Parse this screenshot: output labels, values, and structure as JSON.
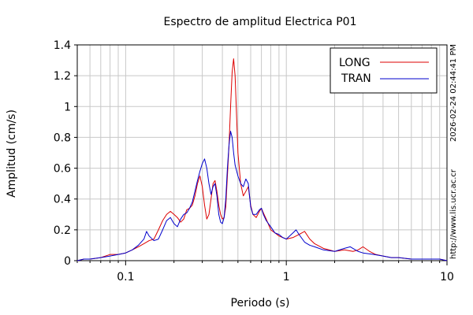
{
  "chart_data": {
    "type": "line",
    "title": "Espectro de amplitud Electrica P01",
    "xlabel": "Periodo (s)",
    "ylabel": "Amplitud (cm/s)",
    "xscale": "log",
    "xlim": [
      0.05,
      10
    ],
    "ylim": [
      0,
      1.4
    ],
    "x_ticks": [
      {
        "value": 0.1,
        "label": "0.1"
      },
      {
        "value": 1,
        "label": "1"
      },
      {
        "value": 10,
        "label": "10"
      }
    ],
    "y_ticks": [
      {
        "value": 0,
        "label": "0"
      },
      {
        "value": 0.2,
        "label": "0.2"
      },
      {
        "value": 0.4,
        "label": "0.4"
      },
      {
        "value": 0.6,
        "label": "0.6"
      },
      {
        "value": 0.8,
        "label": "0.8"
      },
      {
        "value": 1,
        "label": "1"
      },
      {
        "value": 1.2,
        "label": "1.2"
      },
      {
        "value": 1.4,
        "label": "1.4"
      }
    ],
    "grid": true,
    "legend_position": "top-right",
    "series": [
      {
        "name": "LONG",
        "color": "#dd0000",
        "points": [
          [
            0.05,
            0.0
          ],
          [
            0.055,
            0.01
          ],
          [
            0.06,
            0.01
          ],
          [
            0.07,
            0.02
          ],
          [
            0.08,
            0.04
          ],
          [
            0.09,
            0.04
          ],
          [
            0.1,
            0.05
          ],
          [
            0.11,
            0.07
          ],
          [
            0.12,
            0.09
          ],
          [
            0.13,
            0.11
          ],
          [
            0.14,
            0.13
          ],
          [
            0.15,
            0.14
          ],
          [
            0.16,
            0.2
          ],
          [
            0.17,
            0.26
          ],
          [
            0.18,
            0.3
          ],
          [
            0.19,
            0.32
          ],
          [
            0.2,
            0.3
          ],
          [
            0.21,
            0.28
          ],
          [
            0.22,
            0.25
          ],
          [
            0.23,
            0.27
          ],
          [
            0.24,
            0.33
          ],
          [
            0.25,
            0.34
          ],
          [
            0.26,
            0.36
          ],
          [
            0.27,
            0.42
          ],
          [
            0.28,
            0.5
          ],
          [
            0.29,
            0.55
          ],
          [
            0.3,
            0.48
          ],
          [
            0.31,
            0.36
          ],
          [
            0.32,
            0.27
          ],
          [
            0.33,
            0.3
          ],
          [
            0.34,
            0.4
          ],
          [
            0.35,
            0.5
          ],
          [
            0.36,
            0.52
          ],
          [
            0.37,
            0.45
          ],
          [
            0.38,
            0.36
          ],
          [
            0.39,
            0.3
          ],
          [
            0.4,
            0.27
          ],
          [
            0.41,
            0.28
          ],
          [
            0.42,
            0.35
          ],
          [
            0.43,
            0.55
          ],
          [
            0.44,
            0.75
          ],
          [
            0.45,
            1.0
          ],
          [
            0.46,
            1.22
          ],
          [
            0.47,
            1.31
          ],
          [
            0.48,
            1.2
          ],
          [
            0.49,
            0.95
          ],
          [
            0.5,
            0.7
          ],
          [
            0.52,
            0.5
          ],
          [
            0.54,
            0.42
          ],
          [
            0.56,
            0.45
          ],
          [
            0.58,
            0.48
          ],
          [
            0.6,
            0.36
          ],
          [
            0.62,
            0.3
          ],
          [
            0.65,
            0.28
          ],
          [
            0.68,
            0.32
          ],
          [
            0.7,
            0.34
          ],
          [
            0.72,
            0.31
          ],
          [
            0.75,
            0.27
          ],
          [
            0.8,
            0.2
          ],
          [
            0.85,
            0.18
          ],
          [
            0.9,
            0.16
          ],
          [
            0.95,
            0.15
          ],
          [
            1.0,
            0.14
          ],
          [
            1.1,
            0.15
          ],
          [
            1.2,
            0.17
          ],
          [
            1.3,
            0.19
          ],
          [
            1.4,
            0.14
          ],
          [
            1.5,
            0.11
          ],
          [
            1.7,
            0.08
          ],
          [
            2.0,
            0.06
          ],
          [
            2.3,
            0.07
          ],
          [
            2.6,
            0.06
          ],
          [
            2.8,
            0.07
          ],
          [
            3.0,
            0.09
          ],
          [
            3.3,
            0.06
          ],
          [
            3.6,
            0.04
          ],
          [
            4.0,
            0.03
          ],
          [
            4.5,
            0.02
          ],
          [
            5.0,
            0.02
          ],
          [
            6.0,
            0.01
          ],
          [
            7.0,
            0.01
          ],
          [
            8.0,
            0.01
          ],
          [
            9.0,
            0.01
          ],
          [
            10.0,
            0.0
          ]
        ]
      },
      {
        "name": "TRAN",
        "color": "#0000cc",
        "points": [
          [
            0.05,
            0.0
          ],
          [
            0.055,
            0.01
          ],
          [
            0.06,
            0.01
          ],
          [
            0.07,
            0.02
          ],
          [
            0.08,
            0.03
          ],
          [
            0.09,
            0.04
          ],
          [
            0.1,
            0.05
          ],
          [
            0.11,
            0.07
          ],
          [
            0.12,
            0.1
          ],
          [
            0.13,
            0.14
          ],
          [
            0.135,
            0.19
          ],
          [
            0.14,
            0.16
          ],
          [
            0.15,
            0.13
          ],
          [
            0.16,
            0.14
          ],
          [
            0.17,
            0.2
          ],
          [
            0.18,
            0.26
          ],
          [
            0.19,
            0.28
          ],
          [
            0.2,
            0.24
          ],
          [
            0.21,
            0.22
          ],
          [
            0.22,
            0.27
          ],
          [
            0.23,
            0.3
          ],
          [
            0.24,
            0.31
          ],
          [
            0.25,
            0.34
          ],
          [
            0.26,
            0.38
          ],
          [
            0.27,
            0.45
          ],
          [
            0.28,
            0.52
          ],
          [
            0.29,
            0.58
          ],
          [
            0.3,
            0.63
          ],
          [
            0.31,
            0.66
          ],
          [
            0.32,
            0.6
          ],
          [
            0.33,
            0.5
          ],
          [
            0.34,
            0.43
          ],
          [
            0.35,
            0.48
          ],
          [
            0.36,
            0.5
          ],
          [
            0.37,
            0.42
          ],
          [
            0.38,
            0.3
          ],
          [
            0.39,
            0.25
          ],
          [
            0.4,
            0.24
          ],
          [
            0.41,
            0.28
          ],
          [
            0.42,
            0.4
          ],
          [
            0.43,
            0.6
          ],
          [
            0.44,
            0.75
          ],
          [
            0.45,
            0.84
          ],
          [
            0.46,
            0.8
          ],
          [
            0.47,
            0.7
          ],
          [
            0.48,
            0.62
          ],
          [
            0.5,
            0.55
          ],
          [
            0.52,
            0.5
          ],
          [
            0.54,
            0.48
          ],
          [
            0.56,
            0.53
          ],
          [
            0.58,
            0.5
          ],
          [
            0.6,
            0.35
          ],
          [
            0.62,
            0.3
          ],
          [
            0.65,
            0.3
          ],
          [
            0.68,
            0.33
          ],
          [
            0.7,
            0.34
          ],
          [
            0.72,
            0.3
          ],
          [
            0.75,
            0.26
          ],
          [
            0.8,
            0.22
          ],
          [
            0.85,
            0.18
          ],
          [
            0.9,
            0.17
          ],
          [
            0.95,
            0.15
          ],
          [
            1.0,
            0.14
          ],
          [
            1.1,
            0.18
          ],
          [
            1.15,
            0.2
          ],
          [
            1.2,
            0.17
          ],
          [
            1.3,
            0.12
          ],
          [
            1.4,
            0.1
          ],
          [
            1.5,
            0.09
          ],
          [
            1.7,
            0.07
          ],
          [
            2.0,
            0.06
          ],
          [
            2.3,
            0.08
          ],
          [
            2.5,
            0.09
          ],
          [
            2.8,
            0.06
          ],
          [
            3.0,
            0.05
          ],
          [
            3.5,
            0.04
          ],
          [
            4.0,
            0.03
          ],
          [
            4.5,
            0.02
          ],
          [
            5.0,
            0.02
          ],
          [
            6.0,
            0.01
          ],
          [
            7.0,
            0.01
          ],
          [
            8.0,
            0.01
          ],
          [
            9.0,
            0.01
          ],
          [
            10.0,
            0.0
          ]
        ]
      }
    ],
    "side_text": {
      "timestamp": "2026-02-24 02:44:41 PM",
      "url": "http://www.lis.ucr.ac.cr"
    }
  }
}
